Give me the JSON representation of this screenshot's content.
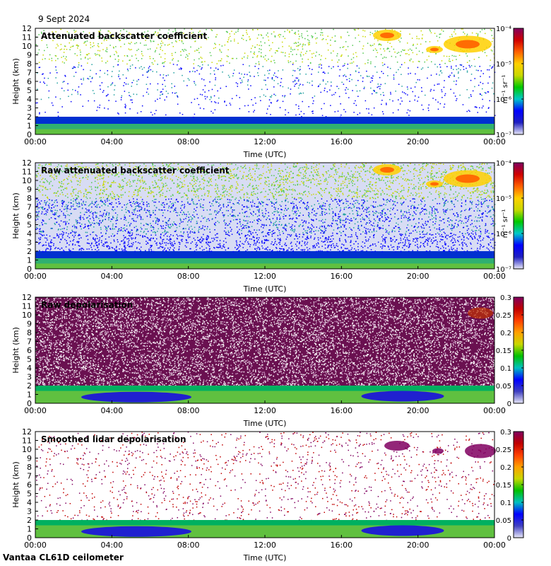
{
  "date_label": "9 Sept 2024",
  "footer": "Vantaa CL61D ceilometer",
  "colors": {
    "backscatter_scale": [
      "#e8e8f8",
      "#2020c0",
      "#0000ff",
      "#00c8c8",
      "#00c800",
      "#c8d800",
      "#ffd000",
      "#ff6000",
      "#d00000",
      "#800060"
    ],
    "depol_scale": [
      "#e8e8f8",
      "#4040c0",
      "#0000ff",
      "#00c0c0",
      "#00c000",
      "#c8d800",
      "#ffa000",
      "#ff4000",
      "#c00000",
      "#800060"
    ]
  },
  "chart_data": [
    {
      "type": "heatmap",
      "title": "Attenuated backscatter coefficient",
      "xlabel": "Time (UTC)",
      "ylabel": "Height (km)",
      "x_ticks": [
        "00:00",
        "04:00",
        "08:00",
        "12:00",
        "16:00",
        "20:00",
        "00:00"
      ],
      "xlim": [
        0,
        24
      ],
      "ylim": [
        0,
        12
      ],
      "y_ticks": [
        "0",
        "1",
        "2",
        "3",
        "4",
        "5",
        "6",
        "7",
        "8",
        "9",
        "10",
        "11",
        "12"
      ],
      "colorbar": {
        "scale": "log",
        "range": [
          1e-07,
          0.0001
        ],
        "ticks": [
          "10⁻⁷",
          "10⁻⁶",
          "10⁻⁵",
          "10⁻⁴"
        ],
        "unit": "m⁻¹ sr⁻¹"
      },
      "grid": false
    },
    {
      "type": "heatmap",
      "title": "Raw attenuated backscatter coefficient",
      "xlabel": "Time (UTC)",
      "ylabel": "Height (km)",
      "x_ticks": [
        "00:00",
        "04:00",
        "08:00",
        "12:00",
        "16:00",
        "20:00",
        "00:00"
      ],
      "xlim": [
        0,
        24
      ],
      "ylim": [
        0,
        12
      ],
      "y_ticks": [
        "0",
        "1",
        "2",
        "3",
        "4",
        "5",
        "6",
        "7",
        "8",
        "9",
        "10",
        "11",
        "12"
      ],
      "colorbar": {
        "scale": "log",
        "range": [
          1e-07,
          0.0001
        ],
        "ticks": [
          "10⁻⁷",
          "10⁻⁶",
          "10⁻⁵",
          "10⁻⁴"
        ],
        "unit": "m⁻¹ sr⁻¹"
      },
      "grid": false
    },
    {
      "type": "heatmap",
      "title": "Raw depolarisation",
      "xlabel": "Time (UTC)",
      "ylabel": "Height (km)",
      "x_ticks": [
        "00:00",
        "04:00",
        "08:00",
        "12:00",
        "16:00",
        "20:00",
        "00:00"
      ],
      "xlim": [
        0,
        24
      ],
      "ylim": [
        0,
        12
      ],
      "y_ticks": [
        "0",
        "1",
        "2",
        "3",
        "4",
        "5",
        "6",
        "7",
        "8",
        "9",
        "10",
        "11",
        "12"
      ],
      "colorbar": {
        "scale": "linear",
        "range": [
          0,
          0.3
        ],
        "ticks": [
          "0",
          "0.05",
          "0.1",
          "0.15",
          "0.2",
          "0.25",
          "0.3"
        ],
        "unit": ""
      },
      "grid": false
    },
    {
      "type": "heatmap",
      "title": "Smoothed lidar depolarisation",
      "xlabel": "Time (UTC)",
      "ylabel": "Height (km)",
      "x_ticks": [
        "00:00",
        "04:00",
        "08:00",
        "12:00",
        "16:00",
        "20:00",
        "00:00"
      ],
      "xlim": [
        0,
        24
      ],
      "ylim": [
        0,
        12
      ],
      "y_ticks": [
        "0",
        "1",
        "2",
        "3",
        "4",
        "5",
        "6",
        "7",
        "8",
        "9",
        "10",
        "11",
        "12"
      ],
      "colorbar": {
        "scale": "linear",
        "range": [
          0,
          0.3
        ],
        "ticks": [
          "0",
          "0.05",
          "0.1",
          "0.15",
          "0.2",
          "0.25",
          "0.3"
        ],
        "unit": ""
      },
      "grid": false
    }
  ]
}
